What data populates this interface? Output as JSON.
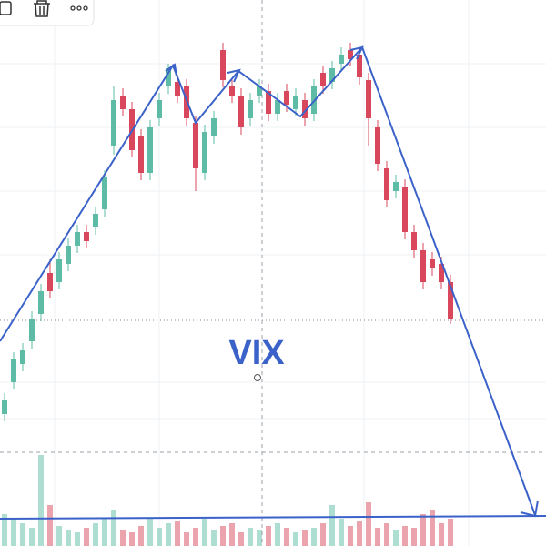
{
  "chart_data": {
    "type": "candlestick",
    "annotation": "VIX",
    "ylim": [
      0,
      600
    ],
    "vlim": [
      0,
      100
    ],
    "up_color": "#5dbba6",
    "down_color": "#d8475b",
    "open": [
      145,
      180,
      200,
      225,
      255,
      300,
      290,
      310,
      330,
      345,
      350,
      370,
      440,
      495,
      480,
      450,
      410,
      470,
      505,
      510,
      505,
      465,
      410,
      450,
      545,
      505,
      495,
      470,
      495,
      500,
      475,
      500,
      480,
      490,
      475,
      520,
      510,
      530,
      545,
      540,
      512,
      460,
      415,
      390,
      395,
      345,
      325,
      315,
      310,
      290
    ],
    "close": [
      160,
      205,
      215,
      250,
      280,
      280,
      315,
      330,
      345,
      335,
      365,
      405,
      490,
      480,
      435,
      410,
      460,
      490,
      525,
      495,
      470,
      415,
      455,
      470,
      512,
      495,
      460,
      490,
      505,
      475,
      490,
      485,
      495,
      470,
      505,
      505,
      525,
      540,
      535,
      515,
      470,
      420,
      380,
      400,
      345,
      325,
      290,
      305,
      290,
      250
    ],
    "high": [
      168,
      213,
      223,
      258,
      288,
      315,
      323,
      338,
      353,
      353,
      373,
      413,
      505,
      503,
      488,
      458,
      468,
      498,
      530,
      518,
      513,
      473,
      463,
      478,
      553,
      513,
      503,
      498,
      513,
      508,
      498,
      508,
      503,
      498,
      513,
      528,
      533,
      548,
      553,
      548,
      520,
      468,
      423,
      408,
      403,
      353,
      333,
      323,
      318,
      298
    ],
    "low": [
      137,
      172,
      192,
      217,
      247,
      272,
      282,
      302,
      322,
      327,
      342,
      362,
      430,
      472,
      427,
      402,
      402,
      462,
      497,
      487,
      462,
      390,
      402,
      442,
      504,
      487,
      452,
      462,
      487,
      467,
      467,
      477,
      472,
      462,
      467,
      497,
      502,
      522,
      527,
      507,
      440,
      412,
      372,
      382,
      337,
      317,
      282,
      297,
      282,
      244
    ],
    "volume": [
      35,
      30,
      25,
      20,
      100,
      45,
      22,
      18,
      15,
      20,
      25,
      30,
      40,
      18,
      15,
      22,
      30,
      20,
      25,
      28,
      15,
      20,
      30,
      18,
      22,
      25,
      15,
      20,
      18,
      22,
      25,
      20,
      15,
      18,
      20,
      25,
      45,
      30,
      22,
      28,
      48,
      20,
      25,
      18,
      22,
      20,
      35,
      40,
      25,
      30
    ]
  }
}
